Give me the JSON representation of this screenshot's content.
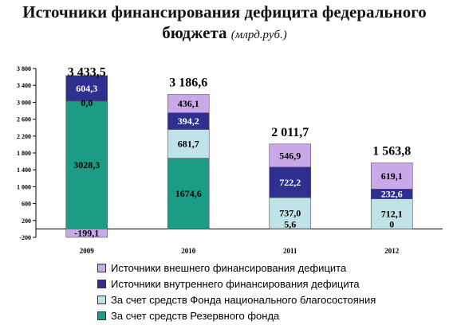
{
  "title": {
    "main": "Источники финансирования дефицита федерального",
    "line2": "бюджета",
    "unit": "(млрд.руб.)"
  },
  "chart_data": {
    "type": "bar",
    "stacked": true,
    "categories": [
      "2009",
      "2010",
      "2011",
      "2012"
    ],
    "ylim": [
      -200,
      3800
    ],
    "yticks": [
      -200,
      200,
      600,
      1000,
      1400,
      1800,
      2200,
      2600,
      3000,
      3400,
      3800
    ],
    "ytick_labels": [
      "-200",
      "200",
      "600",
      "1 000",
      "1 400",
      "1 800",
      "2 200",
      "2 600",
      "3 000",
      "3 400",
      "3 800"
    ],
    "totals": [
      3433.5,
      3186.6,
      2011.7,
      1563.8
    ],
    "total_labels": [
      "3 433,5",
      "3 186,6",
      "2 011,7",
      "1 563,8"
    ],
    "series": [
      {
        "name": "За счет средств Резервного фонда",
        "color": "#1b9c85",
        "values": [
          3028.3,
          1674.6,
          5.6,
          0
        ],
        "labels": [
          "3028,3",
          "1674,6",
          "5,6",
          "0"
        ]
      },
      {
        "name": "За счет средств Фонда национального благосостояния",
        "color": "#bfe3e6",
        "values": [
          0,
          681.7,
          737.0,
          712.1
        ],
        "labels": [
          "0,0",
          "681,7",
          "737,0",
          "712,1"
        ]
      },
      {
        "name": "Источники внутреннего финансирования дефицита",
        "color": "#2e2f8f",
        "values": [
          604.3,
          394.2,
          722.2,
          232.6
        ],
        "labels": [
          "604,3",
          "394,2",
          "722,2",
          "232,6"
        ]
      },
      {
        "name": "Источники внешнего финансирования дефицита",
        "color": "#c9a9e8",
        "values": [
          -199.1,
          436.1,
          546.9,
          619.1
        ],
        "labels": [
          "-199,1",
          "436,1",
          "546,9",
          "619,1"
        ]
      }
    ],
    "legend_order": [
      3,
      2,
      1,
      0
    ],
    "legend_position": "bottom"
  }
}
